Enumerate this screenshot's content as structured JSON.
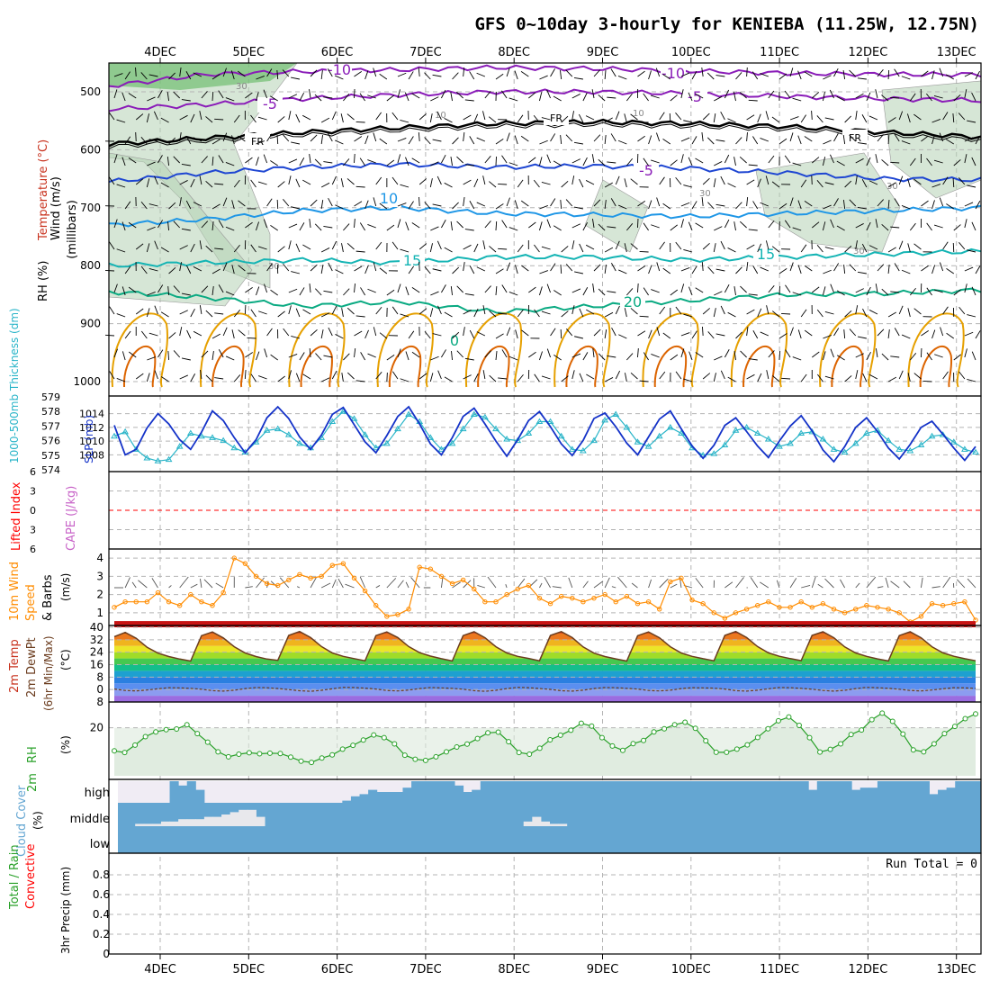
{
  "title": "GFS 0~10day 3-hourly for KENIEBA (11.25W, 12.75N)",
  "date_labels": [
    "4DEC",
    "5DEC",
    "6DEC",
    "7DEC",
    "8DEC",
    "9DEC",
    "10DEC",
    "11DEC",
    "12DEC",
    "13DEC"
  ],
  "colors": {
    "grid": "#b4b4b4",
    "purple": "#8a1cb8",
    "blue": "#1e46d2",
    "lightblue": "#1e96e6",
    "teal": "#14b4b4",
    "green": "#0aaa82",
    "orange": "#e6a000",
    "darkorange": "#dc6400",
    "rh_green": "#b4d2b4",
    "slp": "#1432c8",
    "thick": "#28b4c8",
    "wind10": "#ff8c00",
    "rh2m": "#28a028",
    "cloud": "#64a6d2",
    "cloud_bg": "#f0ecf4",
    "lifted": "#ff0000",
    "cape": "#c864c8"
  },
  "chart_data": [
    {
      "type": "heatmap",
      "panel": "upper-air",
      "ylabel_parts": [
        "Wind (m/s)",
        "Temperature (°C)",
        "RH (%)"
      ],
      "ylabel_units": "(millibars)",
      "yticks": [
        500,
        600,
        700,
        800,
        900,
        1000
      ],
      "ylim": [
        1000,
        450
      ],
      "contour_labels": [
        {
          "text": "-10",
          "at": "6DEC 500mb"
        },
        {
          "text": "-10",
          "at": "10DEC 470mb"
        },
        {
          "text": "-5",
          "at": "5DEC 525mb"
        },
        {
          "text": "-5",
          "at": "10DEC 515mb"
        },
        {
          "text": "FR",
          "at": "5DEC 590mb"
        },
        {
          "text": "FR",
          "at": "8DEC 550mb"
        },
        {
          "text": "FR",
          "at": "12DEC 585mb"
        },
        {
          "text": "-5",
          "at": "9DEC 640mb"
        },
        {
          "text": "10",
          "at": "6DEC 690mb"
        },
        {
          "text": "15",
          "at": "6DEC 795mb"
        },
        {
          "text": "15",
          "at": "11DEC 790mb"
        },
        {
          "text": "20",
          "at": "8DEC 870mb"
        },
        {
          "text": "0",
          "at": "7DEC 930mb"
        }
      ],
      "rh_contour_labels": [
        "30",
        "10",
        "10",
        "30",
        "30",
        "30",
        "30"
      ],
      "isotherms": [
        {
          "value": "-10",
          "levels": [
            490,
            470,
            465,
            462,
            458,
            460,
            464,
            468,
            470,
            470
          ]
        },
        {
          "value": "-5",
          "levels": [
            530,
            522,
            512,
            505,
            500,
            500,
            503,
            508,
            512,
            515
          ]
        },
        {
          "value": "FR",
          "levels": [
            590,
            580,
            570,
            562,
            555,
            552,
            555,
            560,
            570,
            578
          ]
        },
        {
          "value": "5",
          "levels": [
            655,
            640,
            630,
            625,
            630,
            628,
            632,
            640,
            650,
            652
          ]
        },
        {
          "value": "10",
          "levels": [
            730,
            720,
            705,
            700,
            710,
            712,
            715,
            710,
            705,
            700
          ]
        },
        {
          "value": "15",
          "levels": [
            800,
            795,
            790,
            795,
            785,
            785,
            790,
            785,
            780,
            775
          ]
        },
        {
          "value": "20",
          "levels": [
            845,
            855,
            870,
            862,
            880,
            870,
            860,
            850,
            848,
            842
          ]
        }
      ]
    },
    {
      "type": "line",
      "panel": "slp-thickness",
      "ylabel_left": "1000-500mb Thickness (dm)",
      "ylabel_right": "SLP (mb)",
      "yticks_left": [
        574,
        575,
        576,
        577,
        578,
        579
      ],
      "yticks_slp": [
        1008,
        1010,
        1012,
        1014
      ],
      "series": [
        {
          "name": "SLP (mb)",
          "values": [
            1012.3,
            1008.0,
            1008.8,
            1011.9,
            1014.0,
            1012.5,
            1010.2,
            1008.8,
            1011.3,
            1014.4,
            1013.0,
            1010.5,
            1008.3,
            1010.2,
            1013.4,
            1015.0,
            1013.3,
            1010.6,
            1008.8,
            1010.9,
            1013.9,
            1014.9,
            1012.4,
            1009.9,
            1008.3,
            1010.8,
            1013.6,
            1015.0,
            1012.5,
            1009.6,
            1008.0,
            1010.5,
            1013.6,
            1014.8,
            1012.5,
            1010.0,
            1007.8,
            1010.2,
            1013.0,
            1014.3,
            1012.1,
            1009.6,
            1007.9,
            1010.1,
            1013.3,
            1014.1,
            1012.1,
            1009.7,
            1008.0,
            1010.6,
            1013.2,
            1014.4,
            1011.8,
            1009.3,
            1007.5,
            1009.4,
            1012.3,
            1013.4,
            1011.4,
            1009.3,
            1007.6,
            1010.0,
            1012.2,
            1013.7,
            1011.5,
            1008.7,
            1007.0,
            1009.2,
            1012.0,
            1013.4,
            1011.4,
            1009.0,
            1007.4,
            1009.5,
            1012.0,
            1012.9,
            1011.0,
            1009.0,
            1007.2,
            1009.2
          ]
        },
        {
          "name": "1000-500mb Thickness (dm)",
          "values": [
            576.3,
            576.6,
            575.4,
            574.8,
            574.6,
            574.7,
            575.6,
            576.5,
            576.3,
            576.2,
            576.0,
            575.5,
            575.2,
            575.9,
            576.7,
            576.8,
            576.4,
            575.8,
            575.5,
            576.2,
            577.3,
            578.0,
            577.5,
            576.4,
            575.5,
            575.8,
            576.8,
            577.8,
            577.3,
            576.2,
            575.4,
            575.8,
            576.8,
            577.8,
            577.6,
            576.8,
            576.1,
            576.0,
            576.5,
            577.3,
            577.3,
            576.3,
            575.4,
            575.3,
            576.0,
            577.4,
            577.8,
            576.9,
            575.9,
            575.6,
            576.3,
            576.9,
            576.5,
            575.5,
            575.0,
            575.1,
            575.7,
            576.7,
            576.9,
            576.5,
            576.1,
            575.6,
            575.8,
            576.5,
            576.6,
            576.1,
            575.4,
            575.2,
            575.8,
            576.5,
            576.7,
            576.0,
            575.4,
            575.3,
            575.7,
            576.3,
            576.4,
            575.9,
            575.4,
            575.2
          ]
        }
      ]
    },
    {
      "type": "line",
      "panel": "stability",
      "ylabel_left": "Lifted Index",
      "ylabel_right": "CAPE (J/kg)",
      "yticks": [
        -6,
        -3,
        0,
        3,
        6
      ],
      "yticklabels": [
        "6",
        "3",
        "0",
        "3",
        "6"
      ],
      "series": [
        {
          "name": "Lifted Index",
          "values": [
            0
          ]
        },
        {
          "name": "CAPE (J/kg)",
          "values": [
            0
          ]
        }
      ]
    },
    {
      "type": "line",
      "panel": "wind10m",
      "ylabel": "10m Wind Speed & Barbs (m/s)",
      "yticks": [
        1,
        2,
        3,
        4
      ],
      "ylim": [
        0.4,
        4.4
      ],
      "series": [
        {
          "name": "10m Wind Speed",
          "values": [
            1.3,
            1.6,
            1.6,
            1.6,
            2.1,
            1.6,
            1.4,
            2.0,
            1.6,
            1.4,
            2.1,
            4.0,
            3.7,
            3.0,
            2.6,
            2.5,
            2.8,
            3.1,
            2.9,
            3.0,
            3.6,
            3.7,
            2.9,
            2.2,
            1.4,
            0.8,
            0.9,
            1.2,
            3.5,
            3.4,
            3.0,
            2.6,
            2.8,
            2.3,
            1.6,
            1.6,
            2.0,
            2.3,
            2.5,
            1.8,
            1.5,
            1.9,
            1.8,
            1.6,
            1.8,
            2.0,
            1.6,
            1.9,
            1.5,
            1.6,
            1.2,
            2.7,
            2.9,
            1.7,
            1.5,
            1.0,
            0.7,
            1.0,
            1.2,
            1.4,
            1.6,
            1.3,
            1.3,
            1.6,
            1.3,
            1.5,
            1.2,
            1.0,
            1.2,
            1.4,
            1.3,
            1.2,
            1.0,
            0.5,
            0.8,
            1.5,
            1.4,
            1.5,
            1.6,
            0.6
          ]
        }
      ]
    },
    {
      "type": "area",
      "panel": "temperature",
      "ylabel": "2m Temp 2m DewPt (6hr Min/Max) (°C)",
      "yticks": [
        -8,
        0,
        8,
        16,
        24,
        32,
        40
      ],
      "yticklabels": [
        "8",
        "0",
        "8",
        "16",
        "24",
        "32",
        "40"
      ],
      "series": [
        {
          "name": "2m Temp",
          "values": [
            34.0,
            36.7,
            33.0,
            27.2,
            23.4,
            21.2,
            19.6,
            18.3,
            34.6,
            37.0,
            33.2,
            27.5,
            23.5,
            21.2,
            19.6,
            18.8,
            34.8,
            37.3,
            33.4,
            27.6,
            23.5,
            21.3,
            19.9,
            18.5,
            34.7,
            37.0,
            33.4,
            27.6,
            23.7,
            21.5,
            19.8,
            18.4,
            34.7,
            37.1,
            33.3,
            27.5,
            23.5,
            21.3,
            20.0,
            18.5,
            34.8,
            37.2,
            33.4,
            27.4,
            23.4,
            21.2,
            19.7,
            18.3,
            34.6,
            37.0,
            33.3,
            27.5,
            23.5,
            21.3,
            19.8,
            18.5,
            34.8,
            37.3,
            33.4,
            27.6,
            23.6,
            21.4,
            19.9,
            18.6,
            34.8,
            37.1,
            33.3,
            27.4,
            23.5,
            21.3,
            19.7,
            18.4,
            34.7,
            37.1,
            33.3,
            27.5,
            23.6,
            21.4,
            19.8,
            18.5
          ]
        },
        {
          "name": "2m DewPt",
          "values": [
            0.3,
            -0.6,
            -0.9,
            -0.3,
            0.5,
            1.2,
            1.1,
            0.8,
            0.2,
            -0.7,
            -1.0,
            -0.4,
            0.6,
            1.3,
            1.2,
            0.7,
            0.0,
            -0.8,
            -1.1,
            -0.5,
            0.5,
            1.4,
            1.3,
            0.9,
            0.3,
            -0.6,
            -0.9,
            -0.3,
            0.6,
            1.3,
            1.1,
            0.8,
            0.2,
            -0.7,
            -1.1,
            -0.5,
            0.6,
            1.4,
            1.2,
            0.7,
            0.1,
            -0.8,
            -1.0,
            -0.4,
            0.7,
            1.3,
            1.2,
            0.8,
            0.3,
            -0.6,
            -0.9,
            -0.4,
            0.6,
            1.2,
            1.1,
            0.9,
            0.3,
            -0.7,
            -1.0,
            -0.4,
            0.5,
            1.3,
            1.2,
            0.8,
            0.2,
            -0.6,
            -1.0,
            -0.5,
            0.6,
            1.4,
            1.2,
            0.8,
            0.2,
            -0.6,
            -0.9,
            -0.3,
            0.5,
            1.2,
            1.1,
            0.8
          ]
        }
      ]
    },
    {
      "type": "area",
      "panel": "rh2m",
      "ylabel": "2m RH (%)",
      "yticks": [
        20
      ],
      "series": [
        {
          "name": "2m RH",
          "values": [
            10.4,
            9.7,
            12.8,
            16.3,
            18.3,
            19.2,
            19.5,
            21.3,
            17.6,
            14.0,
            10.0,
            7.9,
            9.0,
            9.6,
            9.2,
            9.4,
            9.3,
            7.8,
            6.1,
            5.6,
            7.4,
            8.7,
            11.1,
            12.7,
            14.9,
            17.0,
            15.9,
            13.3,
            8.6,
            6.9,
            6.4,
            7.9,
            10.0,
            12.0,
            13.2,
            15.5,
            17.9,
            18.2,
            14.2,
            9.7,
            9.0,
            11.5,
            15.0,
            16.9,
            19.0,
            21.9,
            20.7,
            15.9,
            12.4,
            10.6,
            13.4,
            14.7,
            18.3,
            19.6,
            21.3,
            22.3,
            19.8,
            14.6,
            9.8,
            9.8,
            11.1,
            12.9,
            16.0,
            19.6,
            22.9,
            24.5,
            21.0,
            15.9,
            9.9,
            11.0,
            13.3,
            17.2,
            19.1,
            23.4,
            26.1,
            22.7,
            17.4,
            10.8,
            10.0,
            13.3,
            17.6,
            20.6,
            23.8,
            25.8
          ]
        }
      ]
    },
    {
      "type": "heatmap",
      "panel": "cloud-cover",
      "ylabel": "Cloud Cover (%)",
      "rows": [
        "high",
        "middle",
        "low"
      ],
      "high_coverage_pct": [
        0,
        0,
        0,
        0,
        0,
        0,
        100,
        80,
        100,
        60,
        0,
        0,
        0,
        0,
        0,
        0,
        0,
        0,
        0,
        0,
        0,
        0,
        0,
        0,
        0,
        0,
        10,
        30,
        40,
        60,
        50,
        50,
        50,
        70,
        100,
        100,
        100,
        100,
        100,
        80,
        50,
        60,
        100,
        100,
        100,
        100,
        100,
        100,
        100,
        100,
        100,
        100,
        100,
        100,
        100,
        100,
        100,
        100,
        100,
        100,
        100,
        100,
        100,
        100,
        100,
        100,
        100,
        100,
        100,
        100,
        100,
        100,
        100,
        100,
        100,
        100,
        100,
        100,
        100,
        100,
        60,
        100,
        100,
        100,
        100,
        60,
        70,
        70,
        100,
        100,
        100,
        100,
        100,
        100,
        40,
        60,
        70,
        100,
        100,
        100
      ],
      "middle_coverage_pct": [
        0,
        0,
        10,
        10,
        10,
        20,
        20,
        30,
        30,
        30,
        40,
        40,
        50,
        60,
        70,
        70,
        40,
        0,
        0,
        0,
        0,
        0,
        0,
        0,
        0,
        0,
        0,
        0,
        0,
        0,
        0,
        0,
        0,
        0,
        0,
        0,
        0,
        0,
        0,
        0,
        0,
        0,
        0,
        0,
        0,
        0,
        0,
        20,
        40,
        20,
        10,
        10,
        0,
        0,
        0,
        0,
        0,
        0,
        0,
        0,
        0,
        0,
        0,
        0,
        0,
        0,
        0,
        0,
        0,
        0,
        0,
        0,
        0,
        0,
        0,
        0,
        0,
        0,
        0,
        0,
        0,
        0,
        0,
        0,
        0,
        0,
        0,
        0,
        0,
        0,
        0,
        0,
        0,
        0,
        0,
        0,
        0,
        0,
        0,
        0
      ]
    },
    {
      "type": "bar",
      "panel": "precip",
      "ylabel_parts": [
        "Total / Rain",
        "Convective"
      ],
      "ylabel": "3hr Precip (mm)",
      "yticks": [
        0,
        0.2,
        0.4,
        0.6,
        0.8
      ],
      "ylim": [
        0,
        1
      ],
      "annotation": "Run Total = 0",
      "series": [
        {
          "name": "Total / Rain",
          "values": [
            0
          ]
        },
        {
          "name": "Convective",
          "values": [
            0
          ]
        }
      ]
    }
  ]
}
